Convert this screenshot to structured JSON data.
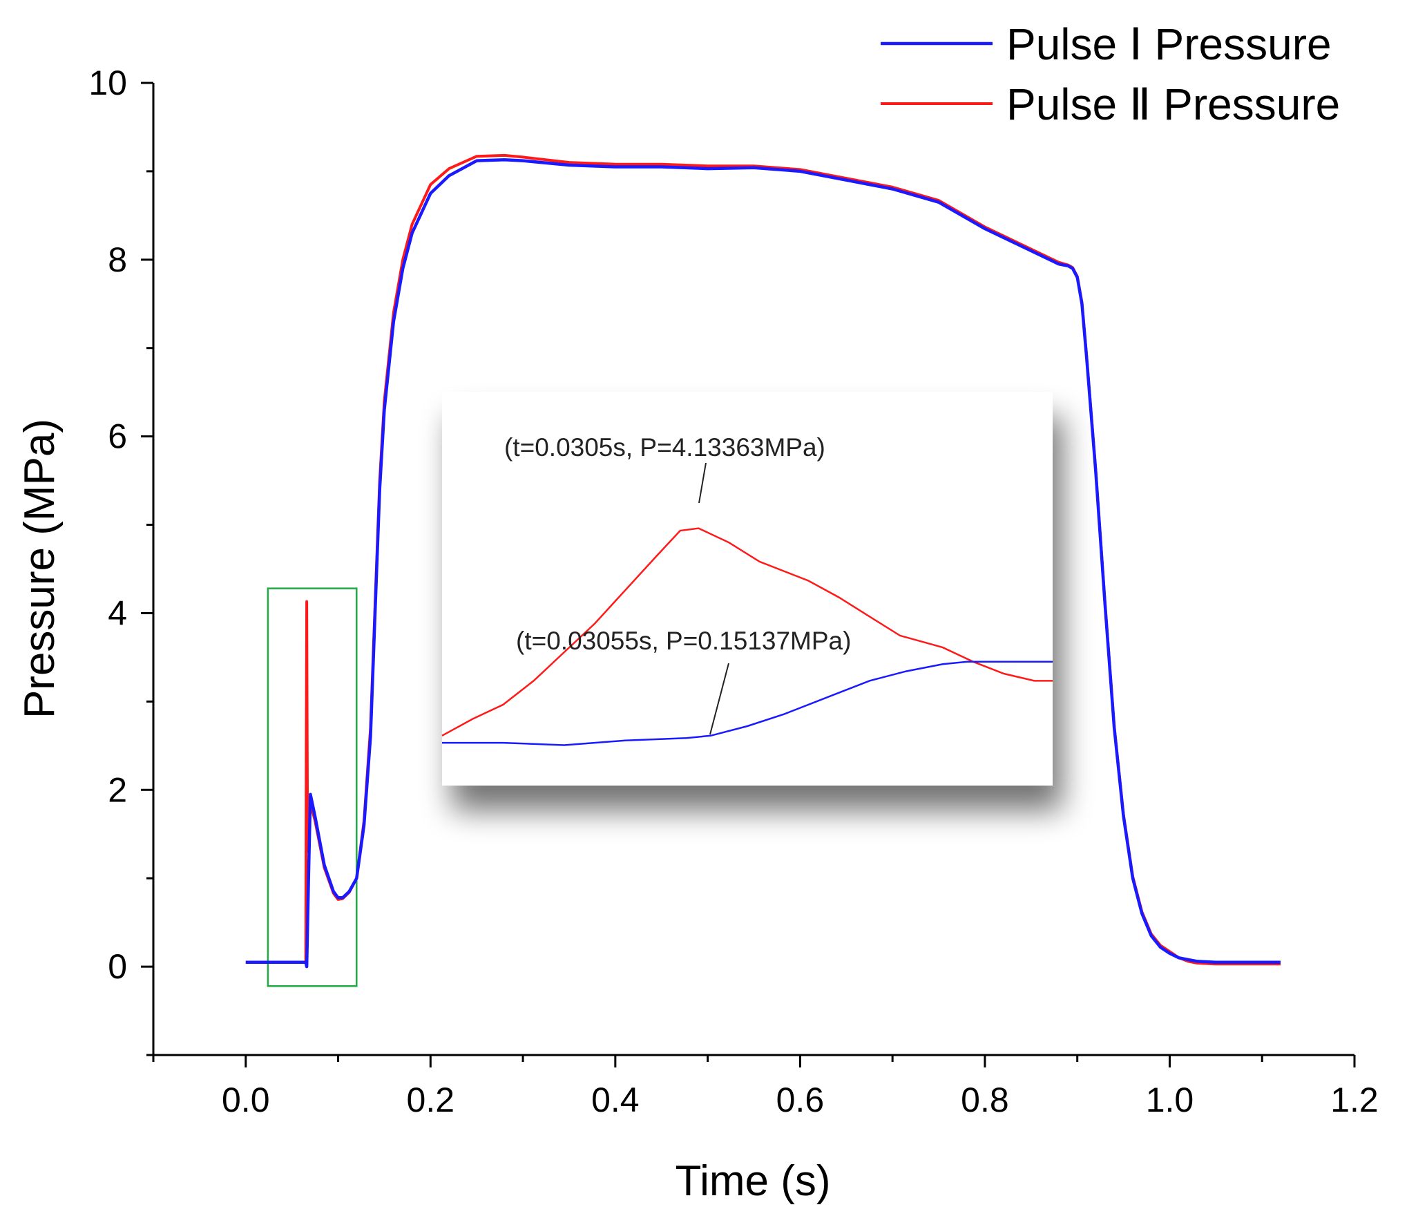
{
  "chart_data": {
    "type": "line",
    "xlabel": "Time (s)",
    "ylabel": "Pressure (MPa)",
    "xlim": [
      -0.1,
      1.2
    ],
    "ylim": [
      -1,
      10
    ],
    "x_ticks": [
      "0.0",
      "0.2",
      "0.4",
      "0.6",
      "0.8",
      "1.0",
      "1.2"
    ],
    "x_tick_values": [
      0,
      0.2,
      0.4,
      0.6,
      0.8,
      1.0,
      1.2
    ],
    "y_ticks": [
      "0",
      "2",
      "4",
      "6",
      "8",
      "10"
    ],
    "y_tick_values": [
      0,
      2,
      4,
      6,
      8,
      10
    ],
    "legend": [
      "Pulse Ⅰ Pressure",
      "Pulse Ⅱ Pressure"
    ],
    "legend_position": "top-right",
    "series": [
      {
        "name": "Pulse Ⅰ Pressure",
        "color": "#1a1aff",
        "x": [
          0.0,
          0.065,
          0.066,
          0.068,
          0.07,
          0.075,
          0.085,
          0.095,
          0.1,
          0.105,
          0.112,
          0.12,
          0.128,
          0.135,
          0.14,
          0.145,
          0.15,
          0.16,
          0.17,
          0.18,
          0.2,
          0.22,
          0.25,
          0.28,
          0.3,
          0.35,
          0.4,
          0.45,
          0.5,
          0.55,
          0.6,
          0.65,
          0.7,
          0.75,
          0.8,
          0.85,
          0.88,
          0.89,
          0.895,
          0.9,
          0.905,
          0.91,
          0.92,
          0.93,
          0.94,
          0.95,
          0.96,
          0.97,
          0.98,
          0.99,
          1.0,
          1.01,
          1.02,
          1.03,
          1.05,
          1.08,
          1.12
        ],
        "y": [
          0.05,
          0.05,
          0.0,
          1.0,
          1.95,
          1.7,
          1.15,
          0.85,
          0.78,
          0.78,
          0.85,
          1.0,
          1.6,
          2.6,
          4.0,
          5.4,
          6.3,
          7.3,
          7.9,
          8.3,
          8.75,
          8.95,
          9.12,
          9.13,
          9.12,
          9.07,
          9.05,
          9.05,
          9.03,
          9.04,
          9.0,
          8.9,
          8.8,
          8.65,
          8.35,
          8.1,
          7.95,
          7.93,
          7.9,
          7.8,
          7.5,
          6.9,
          5.6,
          4.1,
          2.7,
          1.7,
          1.0,
          0.6,
          0.35,
          0.22,
          0.15,
          0.1,
          0.08,
          0.06,
          0.05,
          0.05,
          0.05
        ]
      },
      {
        "name": "Pulse Ⅱ Pressure",
        "color": "#ff1a1a",
        "x": [
          0.0,
          0.065,
          0.0655,
          0.066,
          0.0665,
          0.067,
          0.068,
          0.07,
          0.075,
          0.085,
          0.095,
          0.1,
          0.105,
          0.112,
          0.12,
          0.128,
          0.135,
          0.14,
          0.145,
          0.15,
          0.16,
          0.17,
          0.18,
          0.2,
          0.22,
          0.25,
          0.28,
          0.3,
          0.35,
          0.4,
          0.45,
          0.5,
          0.55,
          0.6,
          0.65,
          0.7,
          0.75,
          0.8,
          0.85,
          0.88,
          0.89,
          0.895,
          0.9,
          0.905,
          0.91,
          0.92,
          0.93,
          0.94,
          0.95,
          0.96,
          0.97,
          0.98,
          0.99,
          1.0,
          1.01,
          1.02,
          1.03,
          1.05,
          1.08,
          1.12
        ],
        "y": [
          0.05,
          0.05,
          2.5,
          4.13,
          2.6,
          1.3,
          1.3,
          1.85,
          1.65,
          1.12,
          0.83,
          0.76,
          0.77,
          0.84,
          1.0,
          1.65,
          2.7,
          4.1,
          5.5,
          6.4,
          7.4,
          8.0,
          8.4,
          8.85,
          9.03,
          9.17,
          9.18,
          9.16,
          9.1,
          9.08,
          9.08,
          9.06,
          9.06,
          9.02,
          8.92,
          8.82,
          8.67,
          8.37,
          8.12,
          7.97,
          7.94,
          7.91,
          7.81,
          7.52,
          6.92,
          5.62,
          4.12,
          2.72,
          1.72,
          1.02,
          0.62,
          0.37,
          0.24,
          0.17,
          0.1,
          0.06,
          0.04,
          0.03,
          0.03,
          0.03
        ]
      }
    ],
    "highlight_box": {
      "x": [
        0.024,
        0.12
      ],
      "y": [
        -0.22,
        4.28
      ],
      "color": "#22aa44"
    },
    "inset": {
      "description": "zoomed view of the highlighted region",
      "annotations": [
        {
          "text": "(t=0.0305s, P=4.13363MPa)",
          "series": "Pulse Ⅱ Pressure",
          "t": 0.0305,
          "P": 4.13363
        },
        {
          "text": "(t=0.03055s, P=0.15137MPa)",
          "series": "Pulse Ⅰ Pressure",
          "t": 0.03055,
          "P": 0.15137
        }
      ],
      "red_curve": {
        "x": [
          0.0,
          0.05,
          0.1,
          0.15,
          0.2,
          0.25,
          0.3,
          0.35,
          0.39,
          0.42,
          0.47,
          0.52,
          0.6,
          0.65,
          0.7,
          0.75,
          0.82,
          0.87,
          0.92,
          0.97,
          1.0
        ],
        "y": [
          0.05,
          0.12,
          0.18,
          0.28,
          0.4,
          0.52,
          0.66,
          0.8,
          0.91,
          0.92,
          0.86,
          0.78,
          0.7,
          0.63,
          0.55,
          0.47,
          0.42,
          0.36,
          0.31,
          0.28,
          0.28
        ]
      },
      "blue_curve": {
        "x": [
          0.0,
          0.05,
          0.1,
          0.2,
          0.3,
          0.4,
          0.44,
          0.5,
          0.56,
          0.64,
          0.7,
          0.76,
          0.82,
          0.86,
          0.9,
          0.95,
          1.0
        ],
        "y": [
          0.02,
          0.02,
          0.02,
          0.01,
          0.03,
          0.04,
          0.05,
          0.09,
          0.14,
          0.22,
          0.28,
          0.32,
          0.35,
          0.36,
          0.36,
          0.36,
          0.36
        ]
      },
      "value_range": [
        0,
        1
      ]
    }
  }
}
